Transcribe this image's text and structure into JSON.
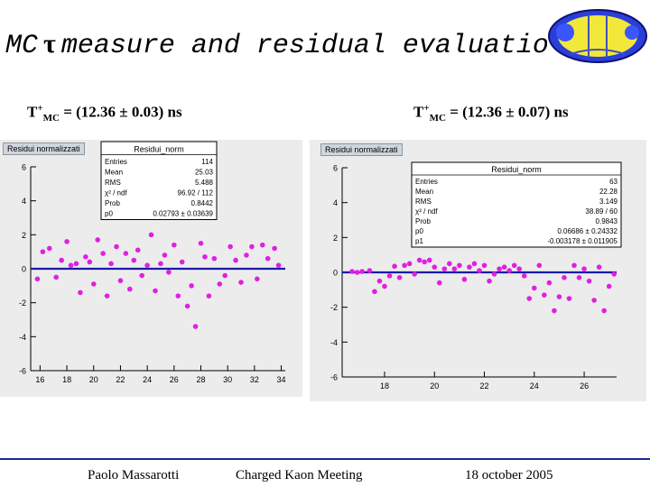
{
  "title": {
    "part1": "MC",
    "symbol": "τ",
    "part2": "measure and residual evaluation"
  },
  "labels": {
    "left": {
      "main": "T",
      "sup": "+",
      "sub": "MC",
      "value": " = (12.36 ± 0.03) ns"
    },
    "right": {
      "main": "T",
      "sup": "+",
      "sub": "MC",
      "value": " = (12.36 ± 0.07) ns"
    }
  },
  "colors": {
    "points": "#e020e0",
    "fit": "#1a1aa8",
    "panel": "#ececec",
    "statbox": "#ffffff"
  },
  "chart_data": [
    {
      "type": "scatter",
      "tab": "Residui normalizzati",
      "xlim": [
        15.3,
        34.3
      ],
      "ylim": [
        -6,
        6
      ],
      "xticks": [
        "16",
        "18",
        "20",
        "22",
        "24",
        "26",
        "28",
        "30",
        "32",
        "34"
      ],
      "yticks": [
        "6",
        "4",
        "2",
        "0",
        "-2",
        "-4",
        "-6"
      ],
      "fit_y": 0,
      "stats": {
        "title": "Residui_norm",
        "rows": [
          [
            "Entries",
            "114"
          ],
          [
            "Mean",
            "25.03"
          ],
          [
            "RMS",
            "5.488"
          ],
          [
            "χ² / ndf",
            "96.92 / 112"
          ],
          [
            "Prob",
            "0.8442"
          ],
          [
            "p0",
            "0.02793 ± 0.03639"
          ]
        ]
      },
      "points": [
        [
          15.8,
          -0.6
        ],
        [
          16.2,
          1.0
        ],
        [
          16.7,
          1.2
        ],
        [
          17.2,
          -0.5
        ],
        [
          17.6,
          0.5
        ],
        [
          18.0,
          1.6
        ],
        [
          18.3,
          0.2
        ],
        [
          18.7,
          0.3
        ],
        [
          19.0,
          -1.4
        ],
        [
          19.4,
          0.7
        ],
        [
          19.7,
          0.4
        ],
        [
          20.0,
          -0.9
        ],
        [
          20.3,
          1.7
        ],
        [
          20.7,
          0.9
        ],
        [
          21.0,
          -1.6
        ],
        [
          21.3,
          0.3
        ],
        [
          21.7,
          1.3
        ],
        [
          22.0,
          -0.7
        ],
        [
          22.4,
          0.9
        ],
        [
          22.7,
          -1.2
        ],
        [
          23.0,
          0.5
        ],
        [
          23.3,
          1.1
        ],
        [
          23.6,
          -0.4
        ],
        [
          24.0,
          0.2
        ],
        [
          24.3,
          2.0
        ],
        [
          24.6,
          -1.3
        ],
        [
          25.0,
          0.3
        ],
        [
          25.3,
          0.8
        ],
        [
          25.6,
          -0.2
        ],
        [
          26.0,
          1.4
        ],
        [
          26.3,
          -1.6
        ],
        [
          26.6,
          0.4
        ],
        [
          27.0,
          -2.2
        ],
        [
          27.3,
          -1.0
        ],
        [
          27.6,
          -3.4
        ],
        [
          28.0,
          1.5
        ],
        [
          28.3,
          0.7
        ],
        [
          28.6,
          -1.6
        ],
        [
          29.0,
          0.6
        ],
        [
          29.4,
          -0.9
        ],
        [
          29.8,
          -0.4
        ],
        [
          30.2,
          1.3
        ],
        [
          30.6,
          0.5
        ],
        [
          31.0,
          -0.8
        ],
        [
          31.4,
          0.8
        ],
        [
          31.8,
          1.3
        ],
        [
          32.2,
          -0.6
        ],
        [
          32.6,
          1.4
        ],
        [
          33.0,
          0.6
        ],
        [
          33.5,
          1.2
        ],
        [
          33.8,
          0.2
        ]
      ]
    },
    {
      "type": "scatter",
      "tab": "Residui normalizzati",
      "xlim": [
        16.3,
        27.3
      ],
      "ylim": [
        -6,
        6
      ],
      "xticks": [
        "18",
        "20",
        "22",
        "24",
        "26"
      ],
      "yticks": [
        "6",
        "4",
        "2",
        "0",
        "-2",
        "-4",
        "-6"
      ],
      "fit_y": 0,
      "stats": {
        "title": "Residui_norm",
        "rows": [
          [
            "Entries",
            "63"
          ],
          [
            "Mean",
            "22.28"
          ],
          [
            "RMS",
            "3.149"
          ],
          [
            "χ² / ndf",
            "38.89 / 60"
          ],
          [
            "Prob",
            "0.9843"
          ],
          [
            "p0",
            "0.06686 ± 0.24332"
          ],
          [
            "p1",
            "-0.003178 ± 0.011905"
          ]
        ]
      },
      "points": [
        [
          16.7,
          0.05
        ],
        [
          16.9,
          0.0
        ],
        [
          17.1,
          0.05
        ],
        [
          17.4,
          0.1
        ],
        [
          17.6,
          -1.1
        ],
        [
          17.8,
          -0.5
        ],
        [
          18.0,
          -0.8
        ],
        [
          18.2,
          -0.2
        ],
        [
          18.4,
          0.35
        ],
        [
          18.6,
          -0.3
        ],
        [
          18.8,
          0.4
        ],
        [
          19.0,
          0.5
        ],
        [
          19.2,
          -0.1
        ],
        [
          19.4,
          0.7
        ],
        [
          19.6,
          0.6
        ],
        [
          19.8,
          0.7
        ],
        [
          20.0,
          0.3
        ],
        [
          20.2,
          -0.6
        ],
        [
          20.4,
          0.2
        ],
        [
          20.6,
          0.5
        ],
        [
          20.8,
          0.2
        ],
        [
          21.0,
          0.4
        ],
        [
          21.2,
          -0.4
        ],
        [
          21.4,
          0.3
        ],
        [
          21.6,
          0.5
        ],
        [
          21.8,
          0.1
        ],
        [
          22.0,
          0.4
        ],
        [
          22.2,
          -0.5
        ],
        [
          22.4,
          -0.1
        ],
        [
          22.6,
          0.2
        ],
        [
          22.8,
          0.3
        ],
        [
          23.0,
          0.1
        ],
        [
          23.2,
          0.4
        ],
        [
          23.4,
          0.2
        ],
        [
          23.6,
          -0.2
        ],
        [
          23.8,
          -1.5
        ],
        [
          24.0,
          -0.9
        ],
        [
          24.2,
          0.4
        ],
        [
          24.4,
          -1.3
        ],
        [
          24.6,
          -0.6
        ],
        [
          24.8,
          -2.2
        ],
        [
          25.0,
          -1.4
        ],
        [
          25.2,
          -0.3
        ],
        [
          25.4,
          -1.5
        ],
        [
          25.6,
          0.4
        ],
        [
          25.8,
          -0.3
        ],
        [
          26.0,
          0.2
        ],
        [
          26.2,
          -0.5
        ],
        [
          26.4,
          -1.6
        ],
        [
          26.6,
          0.3
        ],
        [
          26.8,
          -2.2
        ],
        [
          27.0,
          -0.8
        ],
        [
          27.2,
          -0.1
        ]
      ]
    }
  ],
  "footer": {
    "author": "Paolo Massarotti",
    "meeting": "Charged Kaon Meeting",
    "date": "18 october 2005"
  }
}
